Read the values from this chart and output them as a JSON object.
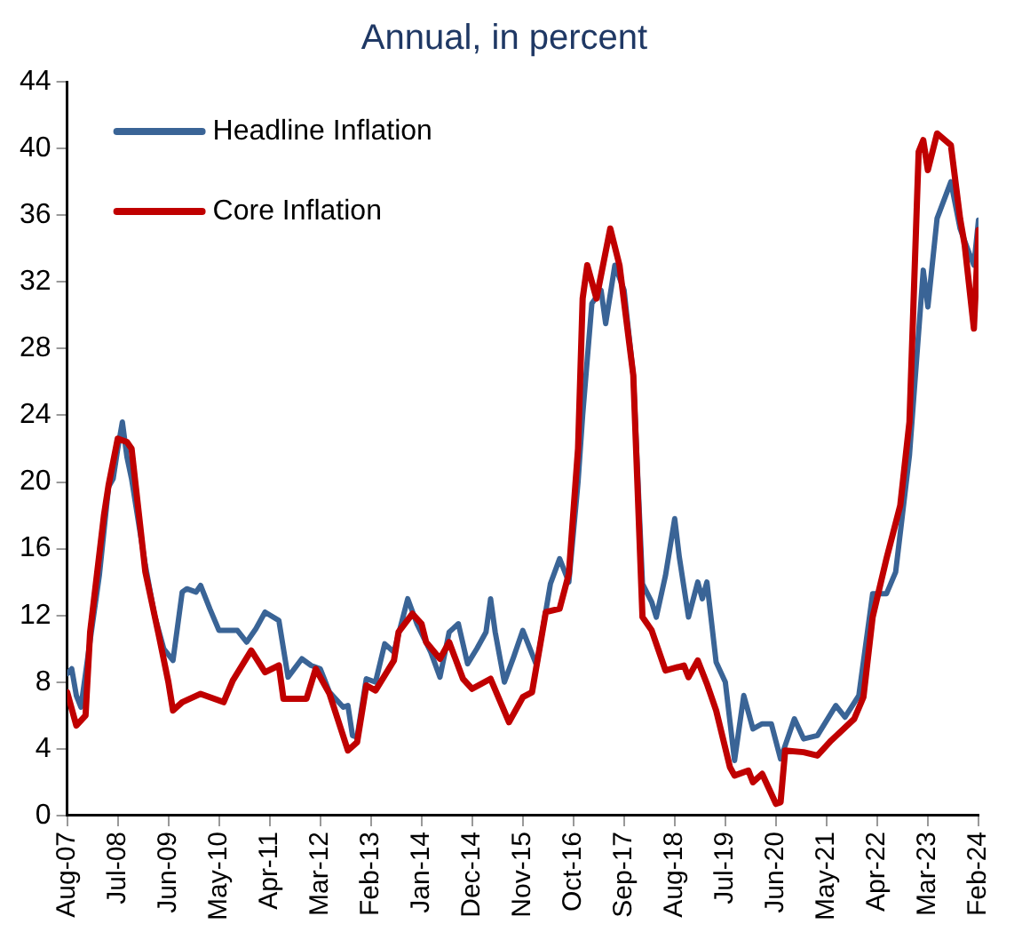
{
  "chart_data": {
    "type": "line",
    "title": "Annual, in percent",
    "legend": "top left",
    "grid": false,
    "marker": "none",
    "line_style": "solid",
    "xlim": [
      "2007-08",
      "2024-02"
    ],
    "xticks": [
      {
        "value": "2007-08",
        "label": "Aug-07"
      },
      {
        "value": "2008-07",
        "label": "Jul-08"
      },
      {
        "value": "2009-06",
        "label": "Jun-09"
      },
      {
        "value": "2010-05",
        "label": "May-10"
      },
      {
        "value": "2011-04",
        "label": "Apr-11"
      },
      {
        "value": "2012-03",
        "label": "Mar-12"
      },
      {
        "value": "2013-02",
        "label": "Feb-13"
      },
      {
        "value": "2014-01",
        "label": "Jan-14"
      },
      {
        "value": "2014-12",
        "label": "Dec-14"
      },
      {
        "value": "2015-11",
        "label": "Nov-15"
      },
      {
        "value": "2016-10",
        "label": "Oct-16"
      },
      {
        "value": "2017-09",
        "label": "Sep-17"
      },
      {
        "value": "2018-08",
        "label": "Aug-18"
      },
      {
        "value": "2019-07",
        "label": "Jul-19"
      },
      {
        "value": "2020-06",
        "label": "Jun-20"
      },
      {
        "value": "2021-05",
        "label": "May-21"
      },
      {
        "value": "2022-04",
        "label": "Apr-22"
      },
      {
        "value": "2023-03",
        "label": "Mar-23"
      },
      {
        "value": "2024-02",
        "label": "Feb-24"
      }
    ],
    "ylim": [
      0,
      44
    ],
    "yticks": [
      0,
      4,
      8,
      12,
      16,
      20,
      24,
      28,
      32,
      36,
      40,
      44
    ],
    "series": [
      {
        "name": "Headline Inflation",
        "color": "#3a6496",
        "x": [
          "2007-08",
          "2007-09",
          "2007-10",
          "2007-11",
          "2008-01",
          "2008-03",
          "2008-05",
          "2008-06",
          "2008-07",
          "2008-08",
          "2008-09",
          "2008-10",
          "2009-01",
          "2009-03",
          "2009-05",
          "2009-07",
          "2009-09",
          "2009-10",
          "2009-12",
          "2010-01",
          "2010-03",
          "2010-05",
          "2010-09",
          "2010-11",
          "2011-01",
          "2011-03",
          "2011-06",
          "2011-08",
          "2011-11",
          "2012-01",
          "2012-03",
          "2012-05",
          "2012-08",
          "2012-09",
          "2012-10",
          "2012-11",
          "2013-01",
          "2013-03",
          "2013-05",
          "2013-07",
          "2013-10",
          "2013-12",
          "2014-03",
          "2014-05",
          "2014-07",
          "2014-09",
          "2014-11",
          "2015-01",
          "2015-03",
          "2015-04",
          "2015-05",
          "2015-07",
          "2015-09",
          "2015-11",
          "2016-02",
          "2016-05",
          "2016-07",
          "2016-09",
          "2016-11",
          "2016-12",
          "2017-02",
          "2017-04",
          "2017-05",
          "2017-07",
          "2017-09",
          "2017-11",
          "2018-01",
          "2018-03",
          "2018-04",
          "2018-06",
          "2018-08",
          "2018-09",
          "2018-11",
          "2019-01",
          "2019-02",
          "2019-03",
          "2019-05",
          "2019-07",
          "2019-09",
          "2019-11",
          "2020-01",
          "2020-03",
          "2020-05",
          "2020-07",
          "2020-10",
          "2020-12",
          "2021-03",
          "2021-07",
          "2021-09",
          "2021-12",
          "2022-03",
          "2022-06",
          "2022-08",
          "2022-11",
          "2023-02",
          "2023-03",
          "2023-05",
          "2023-08",
          "2023-10",
          "2023-12",
          "2024-01",
          "2024-02"
        ],
        "values": [
          8.5,
          8.8,
          7.2,
          6.5,
          10.5,
          14.4,
          19.7,
          20.2,
          22.0,
          23.6,
          21.5,
          20.2,
          15.0,
          12.0,
          10.0,
          9.3,
          13.4,
          13.6,
          13.4,
          13.8,
          12.4,
          11.1,
          11.1,
          10.4,
          11.2,
          12.2,
          11.7,
          8.3,
          9.4,
          9.0,
          8.8,
          7.4,
          6.5,
          6.6,
          4.8,
          4.7,
          8.2,
          8.0,
          10.3,
          9.8,
          13.0,
          11.5,
          9.8,
          8.3,
          11.0,
          11.5,
          9.1,
          10.0,
          11.0,
          13.0,
          11.0,
          8.0,
          9.5,
          11.1,
          9.0,
          13.9,
          15.4,
          14.0,
          20.0,
          24.0,
          30.7,
          31.5,
          29.5,
          33.0,
          31.5,
          26.4,
          13.9,
          12.8,
          11.9,
          14.4,
          17.8,
          15.5,
          11.9,
          14.0,
          13.0,
          14.0,
          9.2,
          8.0,
          3.3,
          7.2,
          5.2,
          5.5,
          5.5,
          3.4,
          5.8,
          4.6,
          4.8,
          6.6,
          5.9,
          7.2,
          13.3,
          13.3,
          14.6,
          21.6,
          32.7,
          30.5,
          35.8,
          38.0,
          35.2,
          33.7,
          33.0,
          35.7
        ]
      },
      {
        "name": "Core Inflation",
        "color": "#c00000",
        "x": [
          "2007-08",
          "2007-10",
          "2007-12",
          "2008-01",
          "2008-04",
          "2008-05",
          "2008-07",
          "2008-09",
          "2008-10",
          "2009-01",
          "2009-04",
          "2009-06",
          "2009-07",
          "2009-09",
          "2010-01",
          "2010-06",
          "2010-08",
          "2010-12",
          "2011-03",
          "2011-06",
          "2011-07",
          "2011-12",
          "2012-02",
          "2012-05",
          "2012-09",
          "2012-11",
          "2013-01",
          "2013-03",
          "2013-07",
          "2013-08",
          "2013-11",
          "2014-01",
          "2014-02",
          "2014-05",
          "2014-07",
          "2014-10",
          "2014-12",
          "2015-04",
          "2015-08",
          "2015-11",
          "2016-01",
          "2016-04",
          "2016-07",
          "2016-09",
          "2016-11",
          "2016-12",
          "2017-01",
          "2017-03",
          "2017-06",
          "2017-08",
          "2017-11",
          "2018-01",
          "2018-03",
          "2018-06",
          "2018-10",
          "2018-11",
          "2019-01",
          "2019-03",
          "2019-05",
          "2019-08",
          "2019-09",
          "2019-12",
          "2020-01",
          "2020-03",
          "2020-06",
          "2020-07",
          "2020-08",
          "2020-12",
          "2021-03",
          "2021-06",
          "2021-11",
          "2022-01",
          "2022-03",
          "2022-06",
          "2022-09",
          "2022-11",
          "2023-01",
          "2023-02",
          "2023-03",
          "2023-05",
          "2023-08",
          "2023-10",
          "2023-11",
          "2024-01",
          "2024-02"
        ],
        "values": [
          7.4,
          5.4,
          6.0,
          11.0,
          18.0,
          19.8,
          22.6,
          22.4,
          22.0,
          14.6,
          10.7,
          8.0,
          6.3,
          6.8,
          7.3,
          6.8,
          8.1,
          9.9,
          8.6,
          9.0,
          7.0,
          7.0,
          8.8,
          7.3,
          3.9,
          4.4,
          7.8,
          7.5,
          9.3,
          11.0,
          12.1,
          11.5,
          10.4,
          9.4,
          10.4,
          8.2,
          7.6,
          8.2,
          5.6,
          7.1,
          7.4,
          12.2,
          12.4,
          14.5,
          22.0,
          31.0,
          33.0,
          31.0,
          35.2,
          33.0,
          26.4,
          11.9,
          11.1,
          8.7,
          9.0,
          8.3,
          9.3,
          7.9,
          6.3,
          2.9,
          2.4,
          2.7,
          2.0,
          2.5,
          0.7,
          0.8,
          3.9,
          3.8,
          3.6,
          4.5,
          5.8,
          7.1,
          11.9,
          15.4,
          18.6,
          23.6,
          39.8,
          40.5,
          38.7,
          40.9,
          40.2,
          35.8,
          34.2,
          29.2,
          35.1
        ]
      }
    ]
  }
}
